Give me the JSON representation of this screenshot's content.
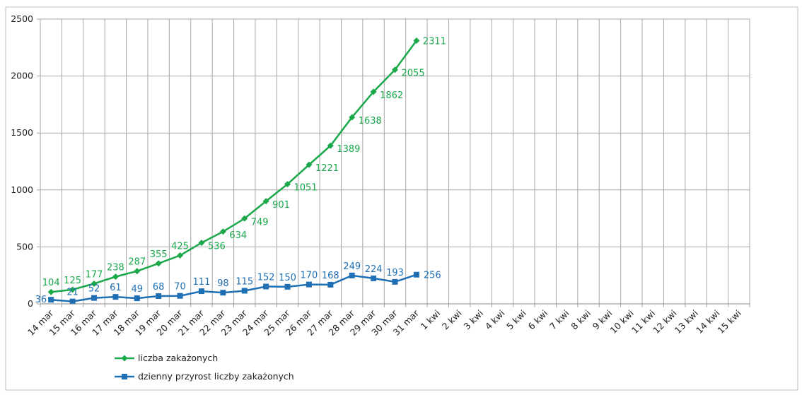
{
  "chart_data": {
    "type": "line",
    "categories": [
      "14 mar",
      "15 mar",
      "16 mar",
      "17 mar",
      "18 mar",
      "19 mar",
      "20 mar",
      "21 mar",
      "22 mar",
      "23 mar",
      "24 mar",
      "25 mar",
      "26 mar",
      "27 mar",
      "28 mar",
      "29 mar",
      "30 mar",
      "31 mar",
      "1 kwi",
      "2 kwi",
      "3 kwi",
      "4 kwi",
      "5 kwi",
      "6 kwi",
      "7 kwi",
      "8 kwi",
      "9 kwi",
      "10 kwi",
      "11 kwi",
      "12 kwi",
      "13 kwi",
      "14 kwi",
      "15 kwi"
    ],
    "series": [
      {
        "name": "liczba zakażonych",
        "color": "#1aa84a",
        "marker": "diamond",
        "values": [
          104,
          125,
          177,
          238,
          287,
          355,
          425,
          536,
          634,
          749,
          901,
          1051,
          1221,
          1389,
          1638,
          1862,
          2055,
          2311,
          null,
          null,
          null,
          null,
          null,
          null,
          null,
          null,
          null,
          null,
          null,
          null,
          null,
          null,
          null
        ]
      },
      {
        "name": "dzienny przyrost liczby zakażonych",
        "color": "#1f6fb5",
        "marker": "square",
        "values": [
          36,
          21,
          52,
          61,
          49,
          68,
          70,
          111,
          98,
          115,
          152,
          150,
          170,
          168,
          249,
          224,
          193,
          256,
          null,
          null,
          null,
          null,
          null,
          null,
          null,
          null,
          null,
          null,
          null,
          null,
          null,
          null,
          null
        ]
      }
    ],
    "ylim": [
      0,
      2500
    ],
    "yticks": [
      0,
      500,
      1000,
      1500,
      2000,
      2500
    ],
    "grid": true,
    "legend": "bottom-left"
  }
}
